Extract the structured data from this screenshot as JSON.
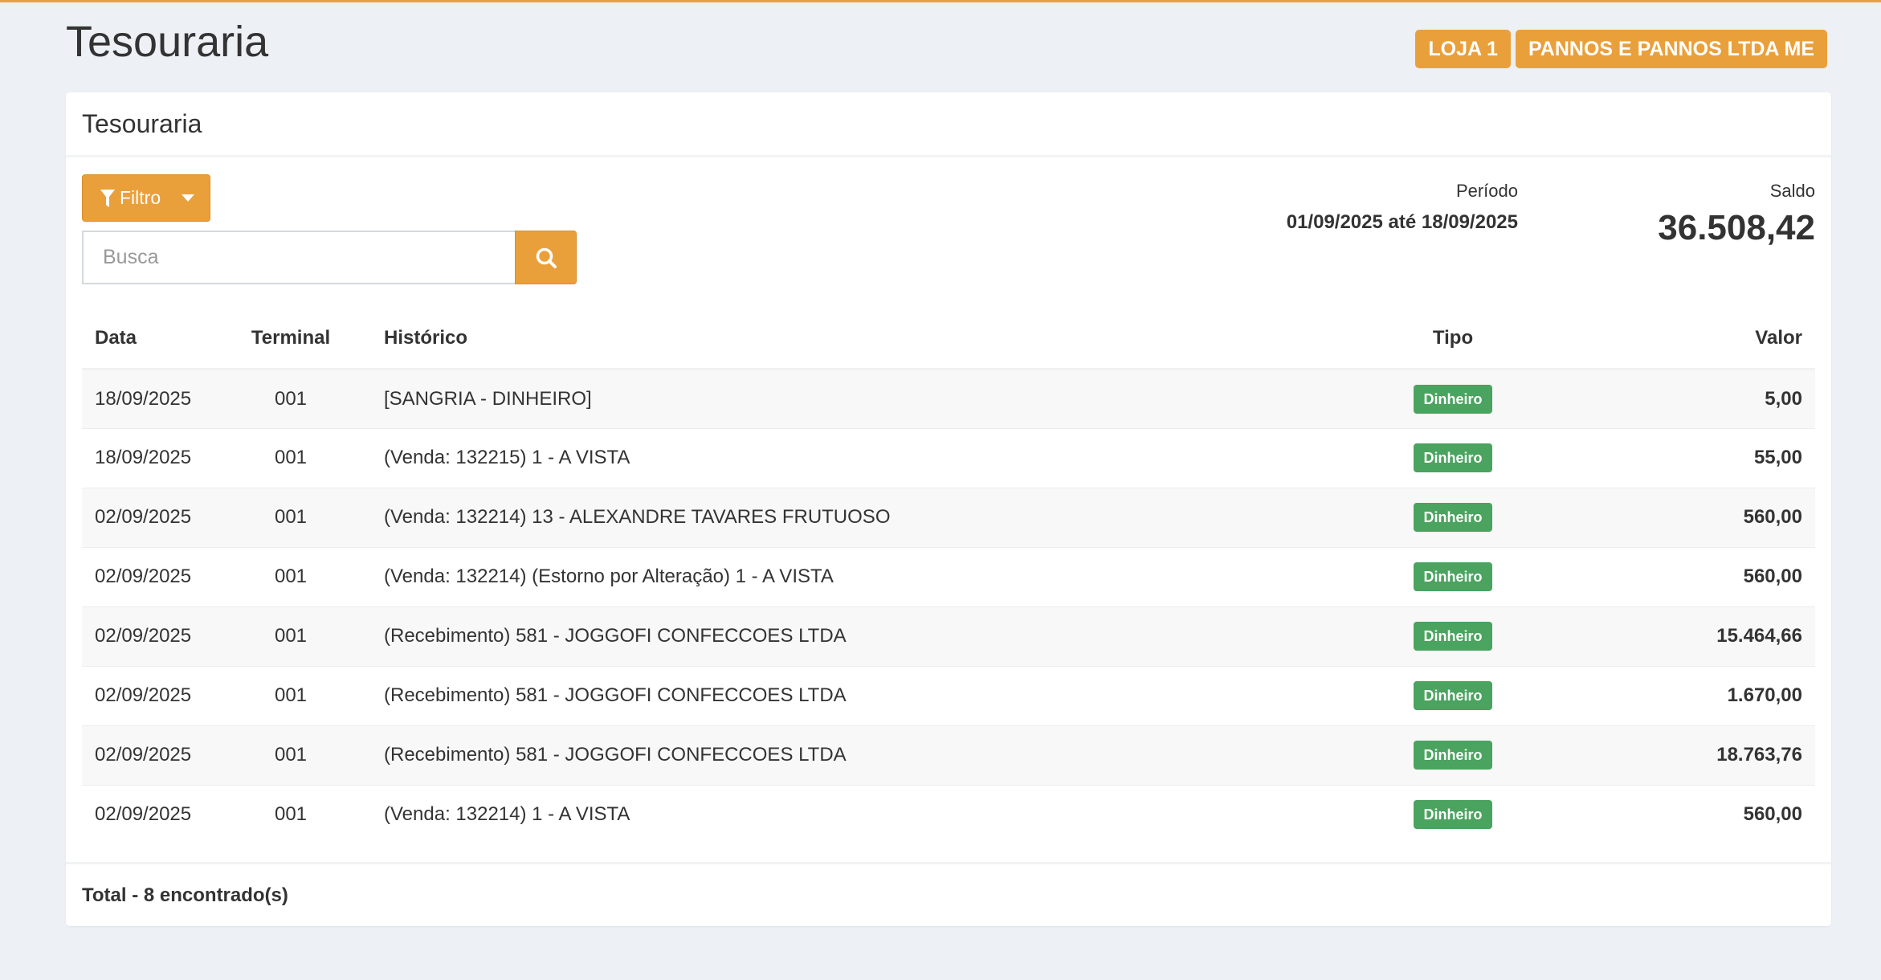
{
  "page": {
    "title": "Tesouraria"
  },
  "badges": [
    "LOJA 1",
    "PANNOS E PANNOS LTDA ME"
  ],
  "card": {
    "title": "Tesouraria"
  },
  "filter": {
    "label": "Filtro",
    "icon": "filter-icon"
  },
  "search": {
    "placeholder": "Busca",
    "value": "",
    "icon": "search-icon"
  },
  "periodo": {
    "label": "Período",
    "value": "01/09/2025 até 18/09/2025"
  },
  "saldo": {
    "label": "Saldo",
    "value": "36.508,42"
  },
  "table": {
    "headers": [
      "Data",
      "Terminal",
      "Histórico",
      "Tipo",
      "Valor"
    ],
    "rows": [
      [
        "18/09/2025",
        "001",
        "[SANGRIA - DINHEIRO]",
        "Dinheiro",
        "5,00"
      ],
      [
        "18/09/2025",
        "001",
        "(Venda: 132215) 1 - A VISTA",
        "Dinheiro",
        "55,00"
      ],
      [
        "02/09/2025",
        "001",
        "(Venda: 132214) 13 - ALEXANDRE TAVARES FRUTUOSO",
        "Dinheiro",
        "560,00"
      ],
      [
        "02/09/2025",
        "001",
        "(Venda: 132214) (Estorno por Alteração) 1 - A VISTA",
        "Dinheiro",
        "560,00"
      ],
      [
        "02/09/2025",
        "001",
        "(Recebimento) 581 - JOGGOFI CONFECCOES LTDA",
        "Dinheiro",
        "15.464,66"
      ],
      [
        "02/09/2025",
        "001",
        "(Recebimento) 581 - JOGGOFI CONFECCOES LTDA",
        "Dinheiro",
        "1.670,00"
      ],
      [
        "02/09/2025",
        "001",
        "(Recebimento) 581 - JOGGOFI CONFECCOES LTDA",
        "Dinheiro",
        "18.763,76"
      ],
      [
        "02/09/2025",
        "001",
        "(Venda: 132214) 1 - A VISTA",
        "Dinheiro",
        "560,00"
      ]
    ]
  },
  "footer": {
    "total": "Total - 8 encontrado(s)"
  },
  "colors": {
    "accent": "#e9a03b",
    "tipo_badge": "#4aa35f",
    "background": "#edf0f5"
  }
}
